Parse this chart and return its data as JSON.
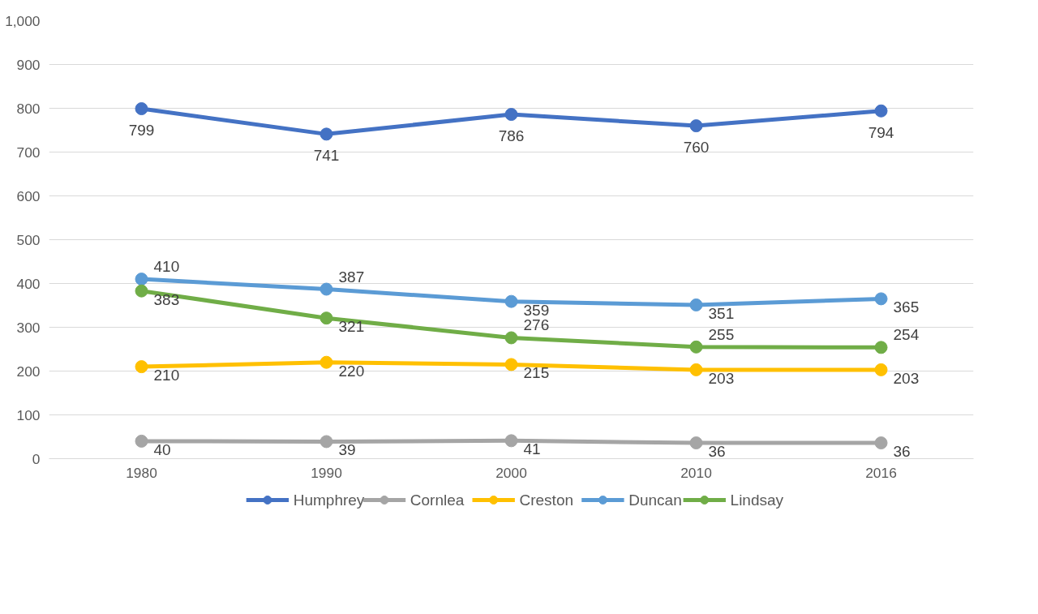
{
  "chart_data": {
    "type": "line",
    "categories": [
      "1980",
      "1990",
      "2000",
      "2010",
      "2016"
    ],
    "series": [
      {
        "name": "Humphrey",
        "color": "#4472c4",
        "values": [
          799,
          741,
          786,
          760,
          794
        ]
      },
      {
        "name": "Cornlea",
        "color": "#a5a5a5",
        "values": [
          40,
          39,
          41,
          36,
          36
        ]
      },
      {
        "name": "Creston",
        "color": "#ffc000",
        "values": [
          210,
          220,
          215,
          203,
          203
        ]
      },
      {
        "name": "Duncan",
        "color": "#5b9bd5",
        "values": [
          410,
          387,
          359,
          351,
          365
        ]
      },
      {
        "name": "Lindsay",
        "color": "#70ad47",
        "values": [
          383,
          321,
          276,
          255,
          254
        ]
      }
    ],
    "ylim": [
      0,
      1000
    ],
    "yticks": [
      0,
      100,
      200,
      300,
      400,
      500,
      600,
      700,
      800,
      900,
      {
        "value": 1000,
        "label": "1,000"
      }
    ],
    "grid": "y",
    "legend": "bottom",
    "marker": "circle",
    "line_style": "solid",
    "data_labels": true
  }
}
